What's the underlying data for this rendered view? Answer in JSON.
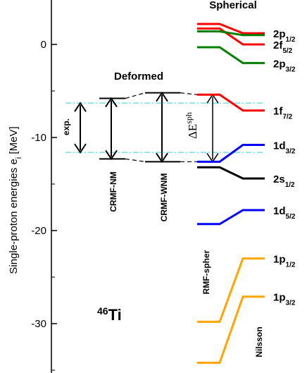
{
  "chart_data": {
    "type": "line",
    "title_top": "Spherical",
    "title_mid": "Deformed",
    "ylabel": "Single-proton energies  e",
    "ylabel_sub": "i",
    "ylabel_unit": " [MeV]",
    "ylim": [
      -35,
      3
    ],
    "yticks": [
      0,
      -10,
      -20,
      -30
    ],
    "ytick_labels": [
      "0",
      "-10",
      "-20",
      "-30"
    ],
    "nucleus_mass": "46",
    "nucleus_symbol": "Ti",
    "labels": {
      "exp": "exp.",
      "crmf_nm": "CRMF-NM",
      "crmf_wnm": "CRMF-WNM",
      "rmf_spher": "RMF-spher",
      "nilsson": "Nilsson",
      "delta_sym": "ΔE",
      "delta_sup": "sph"
    },
    "deformed_gap": {
      "exp": [
        -6.3,
        -11.6
      ],
      "crmf_nm": [
        -5.8,
        -12.3
      ],
      "crmf_wnm": [
        -5.2,
        -12.6
      ]
    },
    "levels": [
      {
        "name": "2p",
        "sub": "1/2",
        "color": "#ff0000",
        "rmf": 2.2,
        "nilsson": 1.2
      },
      {
        "name": "2f",
        "sub": "5/2",
        "color": "#ff0000",
        "rmf": 1.7,
        "nilsson": 0.0
      },
      {
        "name": "2p",
        "sub": "3/2",
        "color": "#008000",
        "rmf": -0.3,
        "nilsson": -2.0
      },
      {
        "name": "",
        "sub": "",
        "color": "#008000",
        "rmf": 1.4,
        "nilsson": 1.0
      },
      {
        "name": "1f",
        "sub": "7/2",
        "color": "#ff0000",
        "rmf": -5.4,
        "nilsson": -7.1
      },
      {
        "name": "1d",
        "sub": "3/2",
        "color": "#0000ff",
        "rmf": -12.6,
        "nilsson": -10.8
      },
      {
        "name": "2s",
        "sub": "1/2",
        "color": "#000000",
        "rmf": -13.2,
        "nilsson": -14.4
      },
      {
        "name": "1d",
        "sub": "5/2",
        "color": "#0000ff",
        "rmf": -19.3,
        "nilsson": -17.8
      },
      {
        "name": "1p",
        "sub": "1/2",
        "color": "#ffa500",
        "rmf": -29.8,
        "nilsson": -23.0
      },
      {
        "name": "1p",
        "sub": "3/2",
        "color": "#ffa500",
        "rmf": -34.2,
        "nilsson": -27.1
      }
    ],
    "grid": false,
    "legend": "none"
  }
}
